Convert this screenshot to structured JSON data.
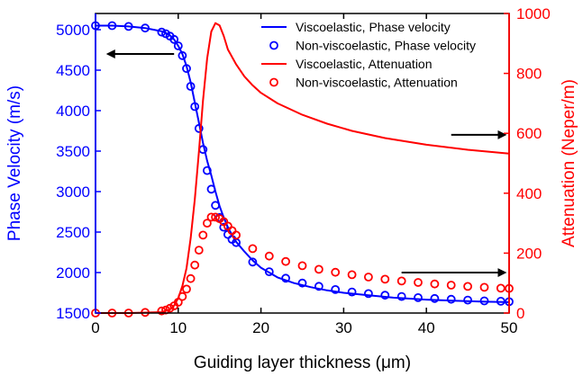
{
  "chart_data": {
    "type": "line",
    "title": "",
    "xlabel": "Guiding layer thickness (μm)",
    "ylabel_left": "Phase Velocity (m/s)",
    "ylabel_right": "Attenuation (Neper/m)",
    "xlim": [
      0,
      50
    ],
    "ylim_left": [
      1500,
      5200
    ],
    "ylim_right": [
      0,
      1000
    ],
    "x_ticks": [
      0,
      10,
      20,
      30,
      40,
      50
    ],
    "y_left_ticks": [
      1500,
      2000,
      2500,
      3000,
      3500,
      4000,
      4500,
      5000
    ],
    "y_right_ticks": [
      0,
      200,
      400,
      600,
      800,
      1000
    ],
    "left_axis_color": "#0000ff",
    "right_axis_color": "#ff0000",
    "legend_position": "top-right",
    "series": [
      {
        "name": "Viscoelastic, Phase velocity",
        "style": "line",
        "axis": "left",
        "color": "#0000ff",
        "x": [
          0,
          2,
          4,
          6,
          7,
          8,
          8.5,
          9,
          9.5,
          10,
          10.5,
          11,
          11.5,
          12,
          12.5,
          13,
          13.5,
          14,
          14.5,
          15,
          15.5,
          16,
          16.5,
          17,
          18,
          19,
          20,
          22,
          24,
          26,
          28,
          30,
          33,
          36,
          40,
          44,
          47,
          50
        ],
        "y": [
          5050,
          5050,
          5040,
          5020,
          5000,
          4980,
          4960,
          4930,
          4880,
          4800,
          4700,
          4550,
          4350,
          4100,
          3850,
          3600,
          3380,
          3200,
          3000,
          2820,
          2680,
          2560,
          2460,
          2380,
          2260,
          2150,
          2060,
          1940,
          1870,
          1820,
          1780,
          1750,
          1720,
          1690,
          1665,
          1650,
          1640,
          1635
        ]
      },
      {
        "name": "Non-viscoelastic, Phase velocity",
        "style": "markers",
        "axis": "left",
        "color": "#0000ff",
        "x": [
          0,
          2,
          4,
          6,
          8,
          8.5,
          9,
          9.5,
          10,
          10.5,
          11,
          11.5,
          12,
          12.5,
          13,
          13.5,
          14,
          14.5,
          15,
          15.5,
          16,
          16.5,
          17,
          19,
          21,
          23,
          25,
          27,
          29,
          31,
          33,
          35,
          37,
          39,
          41,
          43,
          45,
          47,
          49,
          50
        ],
        "y": [
          5050,
          5050,
          5040,
          5020,
          4970,
          4950,
          4920,
          4880,
          4800,
          4680,
          4520,
          4300,
          4050,
          3780,
          3520,
          3260,
          3030,
          2830,
          2680,
          2560,
          2470,
          2410,
          2370,
          2130,
          2010,
          1930,
          1870,
          1830,
          1790,
          1760,
          1740,
          1720,
          1705,
          1690,
          1680,
          1670,
          1660,
          1650,
          1645,
          1640
        ]
      },
      {
        "name": "Viscoelastic, Attenuation",
        "style": "line",
        "axis": "right",
        "color": "#ff0000",
        "x": [
          0,
          4,
          8,
          9,
          9.5,
          10,
          10.5,
          11,
          11.5,
          12,
          12.5,
          13,
          13.5,
          14,
          14.5,
          15,
          15.5,
          16,
          17,
          18,
          19,
          20,
          22,
          25,
          28,
          31,
          35,
          40,
          45,
          50
        ],
        "y": [
          0,
          0,
          3,
          12,
          25,
          50,
          90,
          150,
          250,
          380,
          540,
          710,
          850,
          940,
          968,
          960,
          925,
          880,
          830,
          790,
          760,
          735,
          700,
          662,
          632,
          608,
          584,
          562,
          545,
          532
        ]
      },
      {
        "name": "Non-viscoelastic, Attenuation",
        "style": "markers",
        "axis": "right",
        "color": "#ff0000",
        "x": [
          0,
          2,
          4,
          6,
          8,
          8.5,
          9,
          9.5,
          10,
          10.5,
          11,
          11.5,
          12,
          12.5,
          13,
          13.5,
          14,
          14.5,
          15,
          15.5,
          16,
          16.5,
          17,
          19,
          21,
          23,
          25,
          27,
          29,
          31,
          33,
          35,
          37,
          39,
          41,
          43,
          45,
          47,
          49,
          50
        ],
        "y": [
          0,
          0,
          0,
          2,
          7,
          10,
          16,
          24,
          36,
          55,
          80,
          115,
          160,
          210,
          260,
          300,
          320,
          320,
          315,
          305,
          290,
          275,
          260,
          215,
          190,
          172,
          158,
          146,
          136,
          128,
          120,
          113,
          107,
          102,
          97,
          93,
          89,
          86,
          83,
          82
        ]
      }
    ],
    "annotations": [
      {
        "type": "arrow",
        "direction": "left",
        "axis": "left",
        "x_from": 9.5,
        "x_to": 1.5,
        "y": 4700
      },
      {
        "type": "arrow",
        "direction": "right",
        "axis": "right",
        "x_from": 43,
        "x_to": 49.5,
        "y": 595
      },
      {
        "type": "arrow",
        "direction": "right",
        "axis": "right",
        "x_from": 37,
        "x_to": 49.5,
        "y": 135
      }
    ]
  }
}
